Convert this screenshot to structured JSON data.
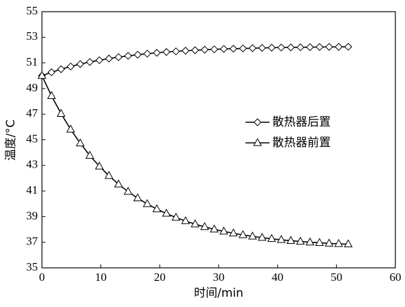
{
  "chart_data": {
    "type": "line",
    "xlabel": "时间/min",
    "ylabel": "温度/°C",
    "x": [
      0,
      1.625,
      3.25,
      4.875,
      6.5,
      8.125,
      9.75,
      11.375,
      13,
      14.625,
      16.25,
      17.875,
      19.5,
      21.125,
      22.75,
      24.375,
      26,
      27.625,
      29.25,
      30.875,
      32.5,
      34.125,
      35.75,
      37.375,
      39,
      40.625,
      42.25,
      43.875,
      45.5,
      47.125,
      48.75,
      50.375,
      52
    ],
    "series": [
      {
        "name": "散热器后置",
        "color": "#000000",
        "marker": "diamond",
        "values": [
          50.0,
          50.27,
          50.51,
          50.72,
          50.91,
          51.07,
          51.21,
          51.34,
          51.45,
          51.55,
          51.64,
          51.72,
          51.79,
          51.85,
          51.9,
          51.95,
          51.99,
          52.03,
          52.06,
          52.09,
          52.11,
          52.13,
          52.15,
          52.17,
          52.19,
          52.2,
          52.21,
          52.22,
          52.23,
          52.24,
          52.25,
          52.25,
          52.26
        ]
      },
      {
        "name": "散热器前置",
        "color": "#000000",
        "marker": "triangle",
        "values": [
          50.0,
          48.43,
          47.04,
          45.81,
          44.73,
          43.77,
          42.93,
          42.19,
          41.53,
          40.95,
          40.44,
          39.99,
          39.59,
          39.24,
          38.93,
          38.66,
          38.41,
          38.2,
          38.01,
          37.85,
          37.7,
          37.57,
          37.46,
          37.36,
          37.27,
          37.19,
          37.12,
          37.06,
          37.0,
          36.96,
          36.91,
          36.88,
          36.85
        ]
      }
    ],
    "xlim": [
      0,
      60
    ],
    "xticks": [
      0,
      10,
      20,
      30,
      40,
      50,
      60
    ],
    "ylim": [
      35,
      55
    ],
    "yticks": [
      35,
      37,
      39,
      41,
      43,
      45,
      47,
      49,
      51,
      53,
      55
    ],
    "grid": false
  }
}
